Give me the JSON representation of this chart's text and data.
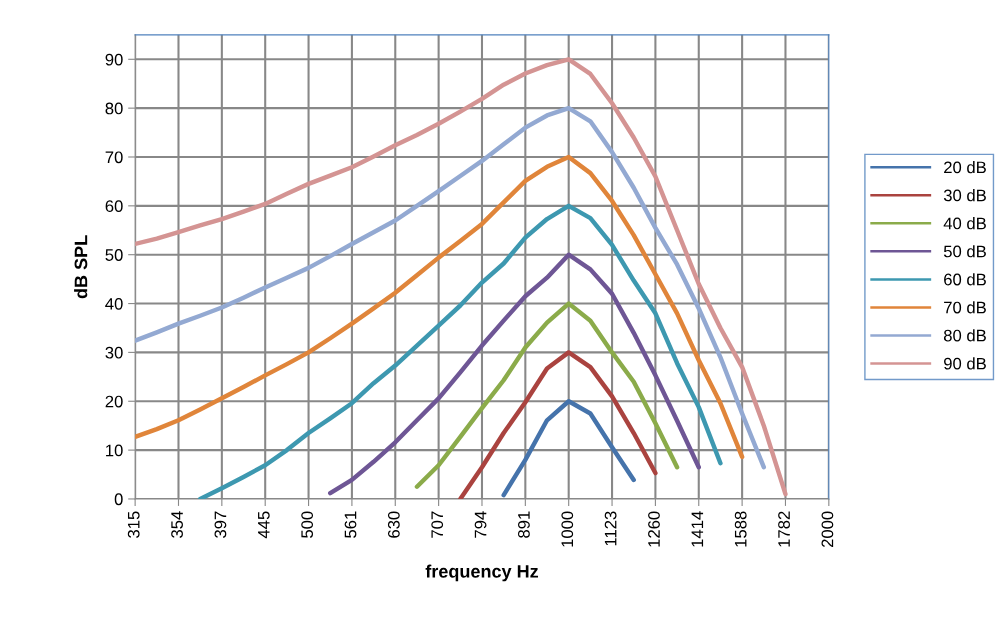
{
  "chart_data": {
    "type": "line",
    "xlabel": "frequency Hz",
    "ylabel": "dB SPL",
    "categories": [
      "315",
      null,
      "354",
      null,
      "397",
      null,
      "445",
      null,
      "500",
      null,
      "561",
      null,
      "630",
      null,
      "707",
      null,
      "794",
      null,
      "891",
      null,
      "1000",
      null,
      "1123",
      null,
      "1260",
      null,
      "1414",
      null,
      "1588",
      null,
      "1782",
      null,
      "2000"
    ],
    "ylim": [
      0,
      95
    ],
    "yticks": [
      0,
      10,
      20,
      30,
      40,
      50,
      60,
      70,
      80,
      90
    ],
    "grid": true,
    "legend": "right",
    "marker": "none",
    "line_style": "solid",
    "series": [
      {
        "name": "20 dB",
        "color": "#4573ab",
        "values": [
          null,
          null,
          null,
          null,
          null,
          null,
          null,
          null,
          null,
          null,
          null,
          null,
          null,
          null,
          null,
          null,
          null,
          0.8,
          8,
          16.1,
          20,
          17.5,
          10.6,
          3.9,
          null,
          null,
          null,
          null,
          null,
          null,
          null,
          null,
          null
        ]
      },
      {
        "name": "30 dB",
        "color": "#aa433f",
        "values": [
          null,
          null,
          null,
          null,
          null,
          null,
          null,
          null,
          null,
          null,
          null,
          null,
          null,
          null,
          null,
          0,
          6.5,
          13.5,
          19.8,
          26.7,
          30,
          27,
          21,
          13.5,
          5.3,
          null,
          null,
          null,
          null,
          null,
          null,
          null,
          null
        ]
      },
      {
        "name": "40 dB",
        "color": "#8bab4a",
        "values": [
          null,
          null,
          null,
          null,
          null,
          null,
          null,
          null,
          null,
          null,
          null,
          null,
          null,
          2.5,
          6.9,
          12.7,
          18.6,
          24.3,
          31,
          36.1,
          40,
          36.5,
          30,
          24,
          15.5,
          6.5,
          null,
          null,
          null,
          null,
          null,
          null,
          null
        ]
      },
      {
        "name": "50 dB",
        "color": "#6e5695",
        "values": [
          null,
          null,
          null,
          null,
          null,
          null,
          null,
          null,
          null,
          1.2,
          3.9,
          7.6,
          11.6,
          16.1,
          20.6,
          25.9,
          31.4,
          36.5,
          41.5,
          45.3,
          50,
          47,
          42,
          34,
          25.3,
          16,
          6.5,
          null,
          null,
          null,
          null,
          null,
          null
        ]
      },
      {
        "name": "60 dB",
        "color": "#3d98b0",
        "values": [
          null,
          null,
          null,
          0,
          2.2,
          4.5,
          6.9,
          10,
          13.5,
          16.5,
          19.6,
          23.7,
          27.3,
          31.4,
          35.5,
          39.6,
          44.3,
          48.2,
          53.5,
          57.3,
          60,
          57.5,
          52,
          44.7,
          38,
          27.8,
          18.8,
          7.3,
          null,
          null,
          null,
          null,
          null
        ]
      },
      {
        "name": "70 dB",
        "color": "#e0853a",
        "values": [
          12.7,
          14.3,
          16.1,
          18.3,
          20.6,
          22.9,
          25.3,
          27.6,
          30,
          32.9,
          35.9,
          39,
          42.2,
          45.8,
          49.4,
          52.8,
          56.3,
          60.7,
          65.1,
          68,
          70,
          66.7,
          61,
          54,
          46,
          38,
          28.4,
          19.6,
          8.6,
          null,
          null,
          null,
          null
        ]
      },
      {
        "name": "80 dB",
        "color": "#93a9d2",
        "values": [
          32.4,
          34.1,
          35.9,
          37.5,
          39.2,
          41.2,
          43.3,
          45.3,
          47.3,
          49.7,
          52.2,
          54.6,
          57,
          60,
          63,
          66.1,
          69.2,
          72.6,
          76,
          78.5,
          80,
          77.3,
          71,
          63.7,
          55.5,
          48,
          39,
          29,
          17.5,
          6.5,
          null,
          null,
          null
        ]
      },
      {
        "name": "90 dB",
        "color": "#d49493",
        "values": [
          52.2,
          53.3,
          54.6,
          56,
          57.3,
          58.8,
          60.4,
          62.5,
          64.5,
          66.2,
          67.9,
          70.1,
          72.4,
          74.5,
          76.8,
          79.3,
          81.9,
          84.8,
          87.1,
          88.8,
          90,
          87,
          81,
          74,
          66,
          55,
          44,
          35,
          27,
          15,
          1,
          null,
          null
        ]
      }
    ]
  }
}
